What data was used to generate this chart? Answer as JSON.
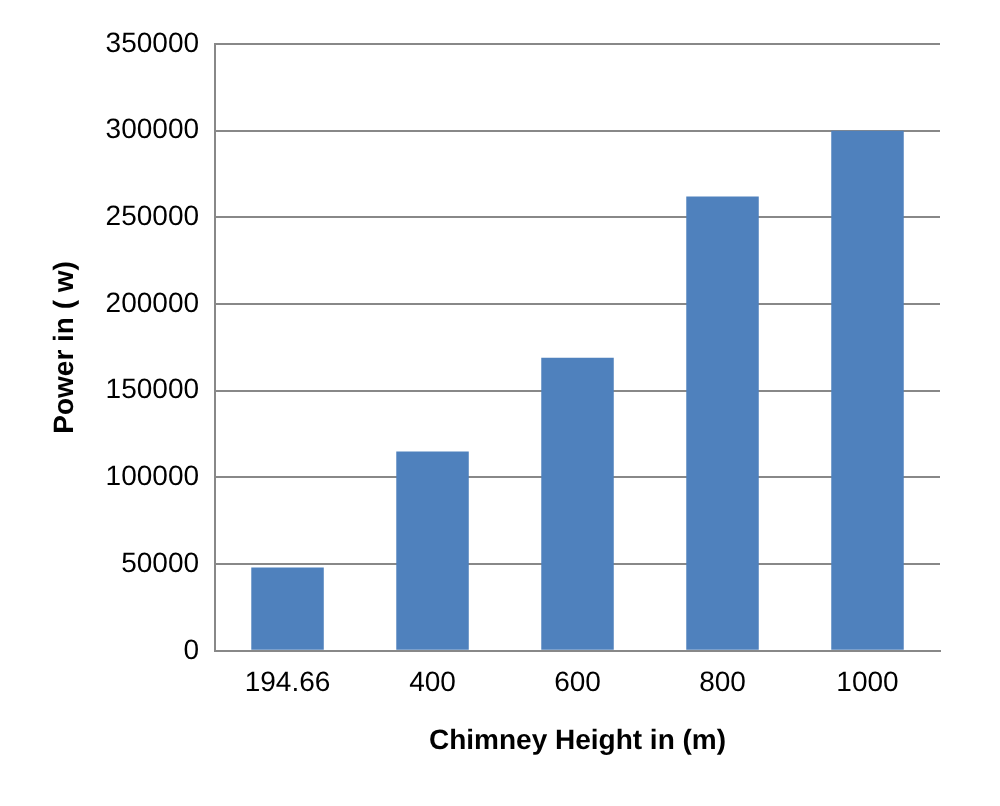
{
  "chart_data": {
    "type": "bar",
    "xlabel": "Chimney Height in (m)",
    "ylabel": "Power in ( w)",
    "categories": [
      "194.66",
      "400",
      "600",
      "800",
      "1000"
    ],
    "values": [
      48000,
      115000,
      169000,
      262000,
      300000
    ],
    "color": "#4f81bd",
    "ylim": [
      0,
      350000
    ],
    "yticks": [
      0,
      50000,
      100000,
      150000,
      200000,
      250000,
      300000,
      350000
    ],
    "grid": "y"
  }
}
